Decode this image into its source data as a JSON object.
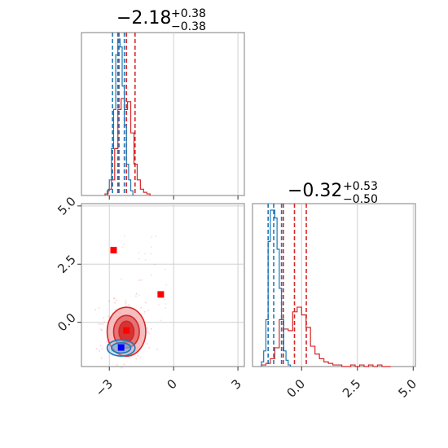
{
  "colors": {
    "red": "#d62728",
    "blue": "#1f77b4",
    "marker_red": "#ff0000",
    "marker_blue": "#0000ff"
  },
  "chart_data": [
    {
      "type": "histogram",
      "panel": "top-left",
      "parameter": "param1",
      "title": {
        "median": "−2.18",
        "plus": "+0.38",
        "minus": "−0.38"
      },
      "xlim": [
        -4.3,
        3.3
      ],
      "grid": true,
      "series": [
        {
          "color": "#d62728",
          "bin_edges": [
            -3.2,
            -3.05,
            -2.9,
            -2.75,
            -2.6,
            -2.45,
            -2.3,
            -2.15,
            -2.0,
            -1.85,
            -1.7,
            -1.55,
            -1.4,
            -1.25,
            -1.1
          ],
          "counts": [
            0.01,
            0.04,
            0.1,
            0.3,
            0.55,
            0.62,
            0.55,
            0.6,
            0.4,
            0.2,
            0.1,
            0.04,
            0.02,
            0.01
          ],
          "quantile_lines": [
            -2.6,
            -2.2,
            -1.8
          ]
        },
        {
          "color": "#1f77b4",
          "bin_edges": [
            -3.1,
            -3.0,
            -2.9,
            -2.8,
            -2.7,
            -2.6,
            -2.5,
            -2.4,
            -2.3,
            -2.2,
            -2.1,
            -2.0,
            -1.9
          ],
          "counts": [
            0.03,
            0.1,
            0.3,
            0.55,
            0.9,
            1.0,
            0.95,
            0.7,
            0.45,
            0.2,
            0.1,
            0.03
          ],
          "quantile_lines": [
            -2.85,
            -2.55,
            -2.3
          ]
        }
      ]
    },
    {
      "type": "scatter-contour",
      "panel": "bottom-left",
      "xlim": [
        -4.3,
        3.3
      ],
      "ylim": [
        -1.9,
        5.1
      ],
      "xticks": [
        "−3",
        "0",
        "3"
      ],
      "yticks": [
        "0.0",
        "2.5",
        "5.0"
      ],
      "grid": true,
      "contours": [
        {
          "color": "#d62728",
          "center": [
            -2.2,
            -0.4
          ],
          "levels": [
            [
              0.9,
              1.05
            ],
            [
              0.6,
              0.7
            ],
            [
              0.35,
              0.45
            ]
          ]
        },
        {
          "color": "#1f77b4",
          "center": [
            -2.45,
            -1.1
          ],
          "levels": [
            [
              0.65,
              0.35
            ],
            [
              0.45,
              0.22
            ]
          ]
        }
      ],
      "markers": [
        {
          "color": "#ff0000",
          "x": -2.8,
          "y": 3.1
        },
        {
          "color": "#ff0000",
          "x": -0.6,
          "y": 1.2
        },
        {
          "color": "#ff0000",
          "x": -2.2,
          "y": -0.35
        },
        {
          "color": "#0000ff",
          "x": -2.45,
          "y": -1.08
        }
      ]
    },
    {
      "type": "histogram",
      "panel": "bottom-right",
      "parameter": "param2",
      "title": {
        "median": "−0.32",
        "plus": "+0.53",
        "minus": "−0.50"
      },
      "xlim": [
        -2.2,
        5.1
      ],
      "xticks": [
        "0.0",
        "2.5",
        "5.0"
      ],
      "grid": true,
      "series": [
        {
          "color": "#d62728",
          "bin_edges": [
            -1.8,
            -1.6,
            -1.4,
            -1.2,
            -1.0,
            -0.8,
            -0.6,
            -0.4,
            -0.2,
            0.0,
            0.2,
            0.4,
            0.6,
            0.8,
            1.0,
            1.2,
            1.4,
            1.6,
            1.8,
            2.0,
            2.2,
            2.4,
            2.6,
            2.8,
            3.0,
            3.2,
            3.4,
            3.6,
            3.8,
            4.0
          ],
          "counts": [
            0.01,
            0.02,
            0.05,
            0.12,
            0.3,
            0.24,
            0.23,
            0.35,
            0.38,
            0.33,
            0.25,
            0.13,
            0.08,
            0.05,
            0.03,
            0.02,
            0.01,
            0.01,
            0.0,
            0.0,
            0.01,
            0.0,
            0.01,
            0.0,
            0.01,
            0.0,
            0.01,
            0.0,
            0.0
          ],
          "quantile_lines": [
            -0.82,
            -0.32,
            0.21
          ]
        },
        {
          "color": "#1f77b4",
          "bin_edges": [
            -1.8,
            -1.7,
            -1.6,
            -1.5,
            -1.4,
            -1.3,
            -1.2,
            -1.1,
            -1.0,
            -0.9,
            -0.8,
            -0.7,
            -0.6,
            -0.5
          ],
          "counts": [
            0.03,
            0.1,
            0.3,
            0.8,
            1.0,
            1.0,
            0.95,
            0.75,
            0.5,
            0.3,
            0.1,
            0.04,
            0.01
          ],
          "quantile_lines": [
            -1.5,
            -1.25,
            -0.9
          ]
        }
      ]
    }
  ]
}
